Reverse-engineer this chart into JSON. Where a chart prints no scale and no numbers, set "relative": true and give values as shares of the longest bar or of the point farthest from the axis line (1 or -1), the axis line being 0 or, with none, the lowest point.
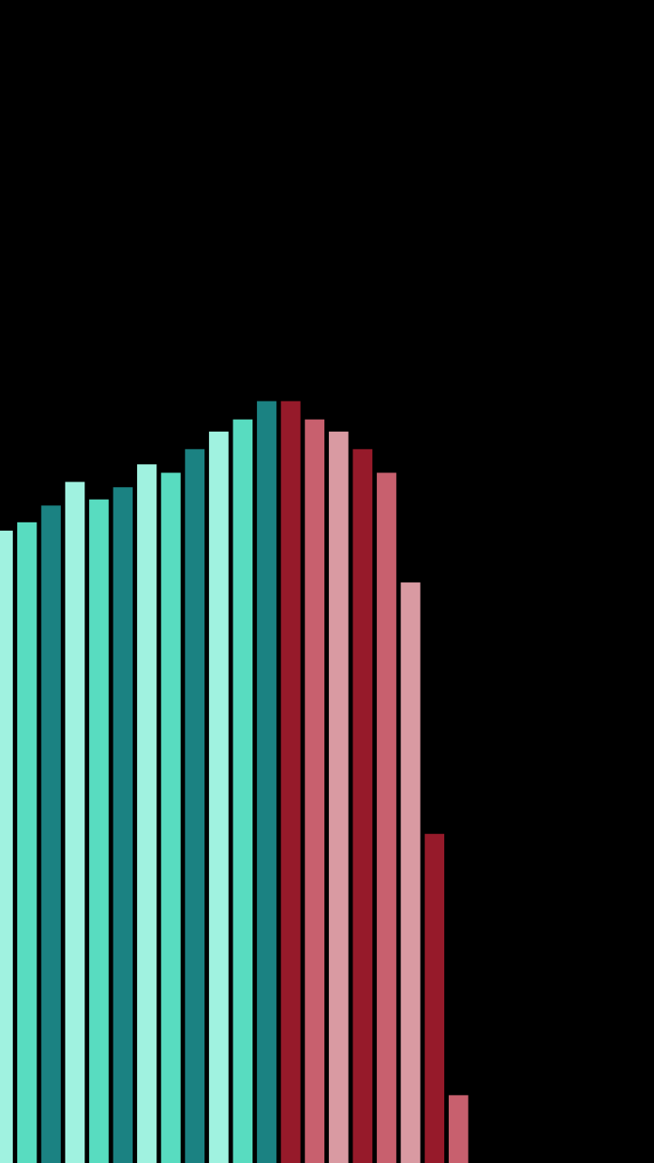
{
  "chart_data": {
    "type": "bar",
    "relative": true,
    "categories": [
      null,
      null,
      null,
      null,
      null,
      null,
      null,
      null,
      null,
      null,
      null,
      null,
      null,
      null,
      null,
      null,
      null,
      null,
      null,
      null
    ],
    "values": [
      0.83,
      0.841,
      0.863,
      0.894,
      0.871,
      0.887,
      0.917,
      0.906,
      0.937,
      0.96,
      0.976,
      1,
      1,
      0.976,
      0.96,
      0.937,
      0.906,
      0.762,
      0.432,
      0.089
    ],
    "colors": [
      "#a0f2e0",
      "#58dcc0",
      "#1b8282",
      "#a0f2e0",
      "#58dcc0",
      "#1b8282",
      "#a0f2e0",
      "#58dcc0",
      "#1b8282",
      "#a0f2e0",
      "#58dcc0",
      "#1b8282",
      "#961a2a",
      "#c8606e",
      "#d99aa2",
      "#961a2a",
      "#c8606e",
      "#d99aa2",
      "#961a2a",
      "#c8606e"
    ]
  }
}
